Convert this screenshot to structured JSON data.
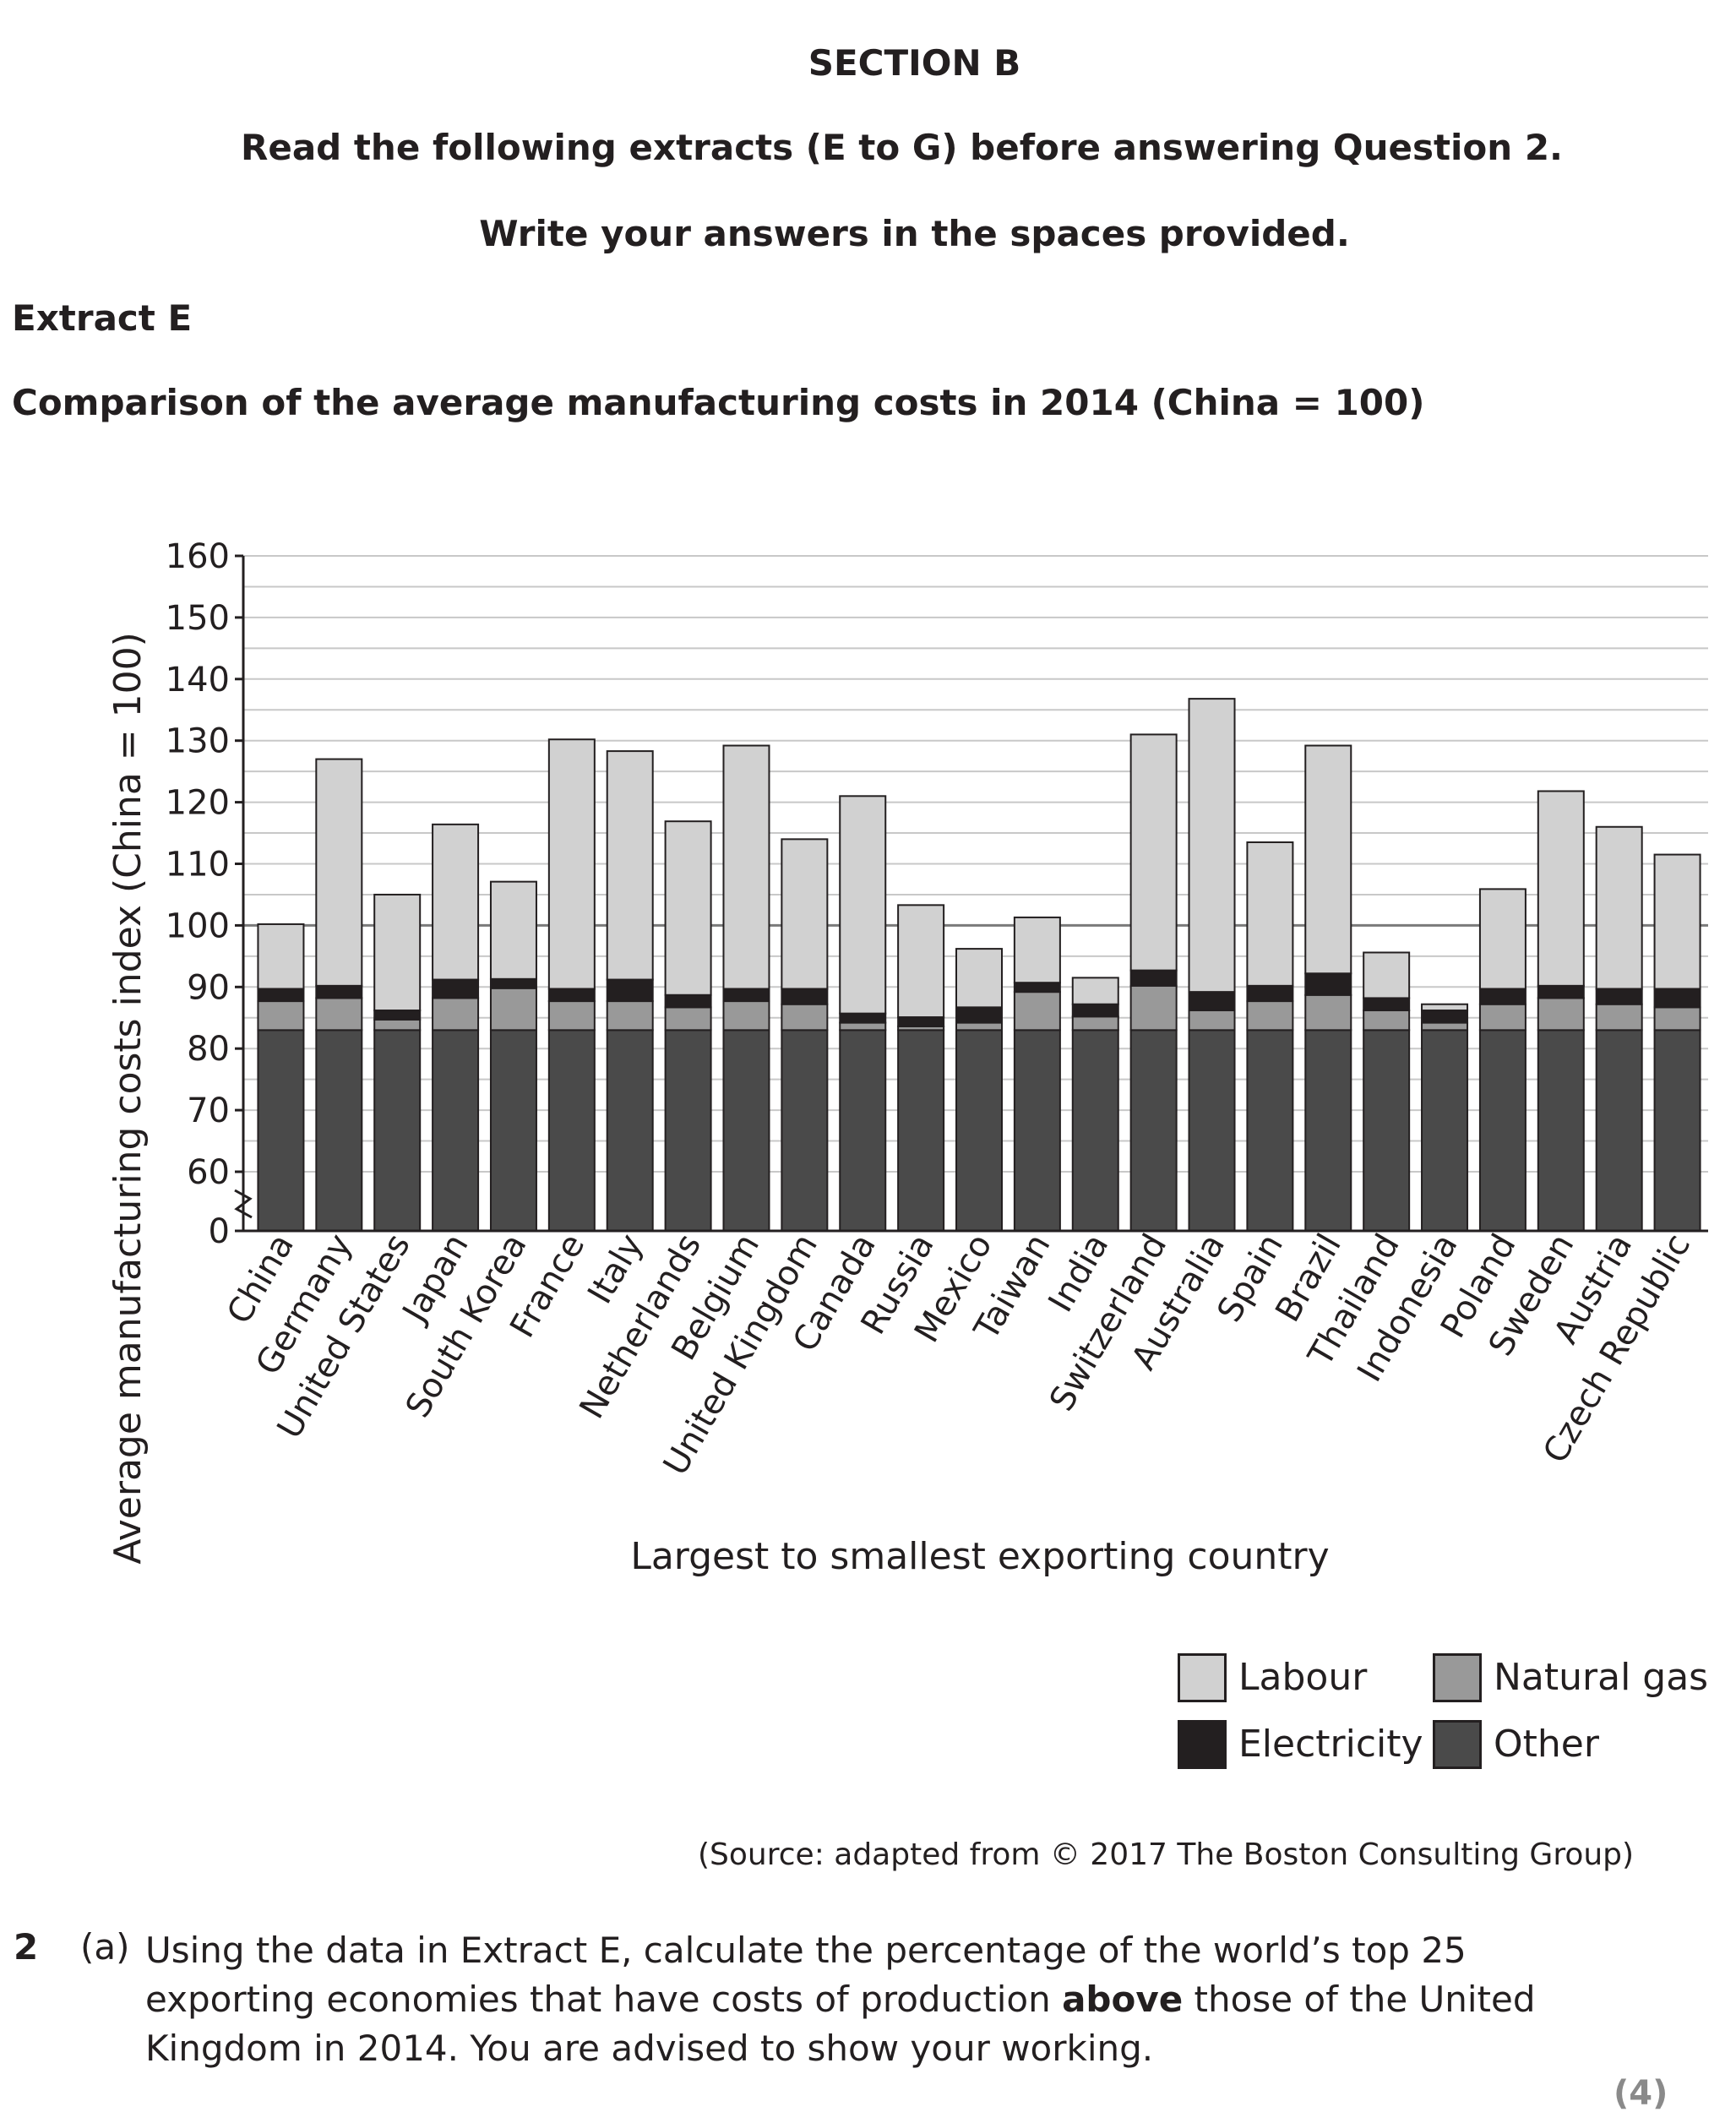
{
  "header": {
    "section": "SECTION B",
    "read_instruction": "Read the following extracts (E to G) before answering Question 2.",
    "write_instruction": "Write your answers in the spaces provided.",
    "extract_label": "Extract E"
  },
  "chart_data": {
    "type": "bar",
    "stacked": true,
    "title": "Comparison of the average manufacturing costs in 2014 (China = 100)",
    "xlabel": "Largest to smallest exporting country",
    "ylabel": "Average manufacturing costs index (China = 100)",
    "ylim": [
      50,
      160
    ],
    "axis_break": true,
    "yticks": [
      "0",
      "60",
      "70",
      "80",
      "90",
      "100",
      "110",
      "120",
      "130",
      "140",
      "150",
      "160"
    ],
    "reference_line": 100,
    "grid": true,
    "legend_position": "bottom-right",
    "categories": [
      "China",
      "Germany",
      "United States",
      "Japan",
      "South Korea",
      "France",
      "Italy",
      "Netherlands",
      "Belgium",
      "United Kingdom",
      "Canada",
      "Russia",
      "Mexico",
      "Taiwan",
      "India",
      "Switzerland",
      "Australia",
      "Spain",
      "Brazil",
      "Thailand",
      "Indonesia",
      "Poland",
      "Sweden",
      "Austria",
      "Czech Republic"
    ],
    "series": [
      {
        "name": "Other",
        "color": "#4a4a4a",
        "values": [
          83,
          83,
          83,
          83,
          83,
          83,
          83,
          83,
          83,
          83,
          83,
          83,
          83,
          83,
          83,
          83,
          83,
          83,
          83,
          83,
          83,
          83,
          83,
          83,
          83
        ]
      },
      {
        "name": "Natural gas",
        "color": "#999999",
        "values": [
          4.7,
          5.2,
          1.7,
          5.2,
          6.8,
          4.7,
          4.7,
          3.7,
          4.7,
          4.2,
          1.2,
          0.6,
          1.2,
          6.2,
          2.2,
          7.2,
          3.2,
          4.7,
          5.7,
          3.2,
          1.2,
          4.2,
          5.2,
          4.2,
          3.7
        ]
      },
      {
        "name": "Electricity",
        "color": "#231f20",
        "values": [
          2.0,
          2.0,
          1.5,
          3.0,
          1.5,
          2.0,
          3.5,
          2.0,
          2.0,
          2.5,
          1.5,
          1.5,
          2.5,
          1.5,
          2.0,
          2.5,
          3.0,
          2.5,
          3.5,
          2.0,
          2.0,
          2.5,
          2.0,
          2.5,
          3.0
        ]
      },
      {
        "name": "Labour",
        "color": "#d1d1d1",
        "values": [
          10.5,
          36.8,
          18.8,
          25.2,
          15.8,
          40.5,
          37.1,
          28.2,
          39.5,
          24.3,
          35.3,
          18.2,
          9.5,
          10.6,
          4.3,
          38.3,
          47.6,
          23.3,
          37.0,
          7.4,
          1.0,
          16.2,
          31.6,
          26.3,
          21.8
        ]
      }
    ],
    "totals": [
      100,
      127,
      105,
      116,
      107,
      130,
      128,
      117,
      129,
      114,
      121,
      103,
      96,
      101,
      91,
      131,
      137,
      114,
      129,
      95,
      87,
      106,
      122,
      116,
      111
    ]
  },
  "legend": {
    "labour": "Labour",
    "natural_gas": "Natural gas",
    "electricity": "Electricity",
    "other": "Other"
  },
  "source": "(Source: adapted from © 2017 The Boston Consulting Group)",
  "question": {
    "number": "2",
    "part": "(a)",
    "text_1": "Using the data in Extract E, calculate the percentage of the world’s top 25",
    "text_2a": "exporting economies that have costs of production ",
    "text_2b": "above",
    "text_2c": " those of the United",
    "text_3": "Kingdom in 2014. You are advised to show your working.",
    "marks": "(4)"
  }
}
